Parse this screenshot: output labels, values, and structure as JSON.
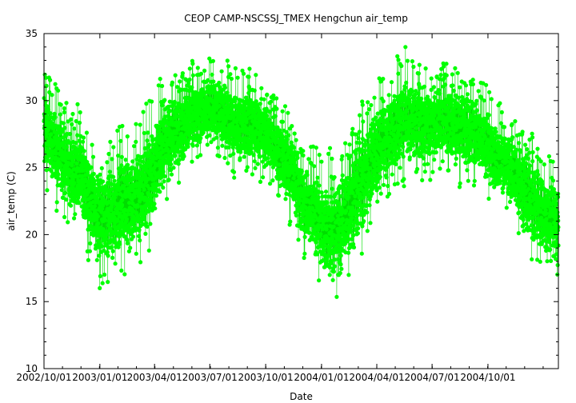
{
  "chart_data": {
    "type": "scatter",
    "title": "CEOP CAMP-NSCSSJ_TMEX Hengchun  air_temp",
    "xlabel": "Date",
    "ylabel": "air_temp (C)",
    "x_range": [
      "2002-10-01",
      "2005-01-25"
    ],
    "ylim": [
      10,
      35
    ],
    "y_ticks": [
      10,
      15,
      20,
      25,
      30,
      35
    ],
    "x_tick_labels": [
      "2002/10/01",
      "2003/01/01",
      "2003/04/01",
      "2003/07/01",
      "2003/10/01",
      "2004/01/01",
      "2004/04/01",
      "2004/07/01",
      "2004/10/01"
    ],
    "x_tick_dates": [
      "2002-10-01",
      "2003-01-01",
      "2003-04-01",
      "2003-07-01",
      "2003-10-01",
      "2004-01-01",
      "2004-04-01",
      "2004-07-01",
      "2004-10-01"
    ],
    "grid": false,
    "legend": "none",
    "marker_color": "#00ff00",
    "line_color": "#00dd00",
    "series": [
      {
        "x": [
          "2002-10-01",
          "2002-10-15",
          "2002-11-01",
          "2002-11-15",
          "2002-12-01",
          "2002-12-15",
          "2003-01-01",
          "2003-01-15",
          "2003-02-01",
          "2003-02-15",
          "2003-03-01",
          "2003-03-15",
          "2003-04-01",
          "2003-04-15",
          "2003-05-01",
          "2003-05-15",
          "2003-06-01",
          "2003-06-15",
          "2003-07-01",
          "2003-07-15",
          "2003-08-01",
          "2003-08-15",
          "2003-09-01",
          "2003-09-15",
          "2003-10-01",
          "2003-10-15",
          "2003-11-01",
          "2003-11-15",
          "2003-12-01",
          "2003-12-15",
          "2004-01-01",
          "2004-01-15",
          "2004-02-01",
          "2004-02-15",
          "2004-03-01",
          "2004-03-15",
          "2004-04-01",
          "2004-04-15",
          "2004-05-01",
          "2004-05-15",
          "2004-06-01",
          "2004-06-15",
          "2004-07-01",
          "2004-07-15",
          "2004-08-01",
          "2004-08-15",
          "2004-09-01",
          "2004-09-15",
          "2004-10-01",
          "2004-10-15",
          "2004-11-01",
          "2004-11-15",
          "2004-12-01",
          "2004-12-15",
          "2005-01-01",
          "2005-01-20"
        ],
        "y_mean": [
          28.0,
          27.0,
          26.0,
          25.5,
          24.0,
          23.0,
          21.5,
          21.0,
          21.0,
          21.5,
          22.5,
          23.5,
          25.5,
          26.0,
          27.0,
          28.0,
          29.0,
          29.0,
          29.5,
          29.5,
          29.0,
          28.5,
          28.5,
          28.0,
          28.0,
          27.0,
          26.0,
          25.0,
          23.0,
          22.0,
          21.0,
          20.5,
          20.5,
          21.5,
          23.0,
          24.0,
          26.0,
          27.0,
          28.0,
          28.5,
          28.5,
          28.5,
          29.0,
          28.5,
          28.5,
          28.0,
          28.0,
          27.5,
          27.0,
          26.5,
          25.5,
          25.0,
          24.0,
          23.5,
          22.5,
          22.0
        ],
        "y_min": [
          23.5,
          22.0,
          21.0,
          20.0,
          19.0,
          17.5,
          15.0,
          16.0,
          15.5,
          16.5,
          17.0,
          17.5,
          19.5,
          21.0,
          22.0,
          23.5,
          25.0,
          25.0,
          25.5,
          25.0,
          24.5,
          24.0,
          24.0,
          24.0,
          23.5,
          22.5,
          21.0,
          20.5,
          18.0,
          17.0,
          16.0,
          13.5,
          14.0,
          16.0,
          17.0,
          19.0,
          20.5,
          21.5,
          22.5,
          23.5,
          24.0,
          23.5,
          24.0,
          24.0,
          23.5,
          23.5,
          23.5,
          23.0,
          22.5,
          21.5,
          21.0,
          20.0,
          18.0,
          17.5,
          16.5,
          16.0
        ],
        "y_max": [
          32.5,
          31.5,
          30.5,
          29.5,
          30.0,
          28.0,
          27.0,
          27.5,
          28.0,
          28.5,
          29.0,
          29.5,
          31.0,
          32.0,
          32.5,
          32.5,
          33.0,
          33.0,
          33.5,
          33.5,
          33.0,
          32.5,
          32.5,
          32.0,
          31.5,
          30.5,
          30.0,
          29.0,
          27.0,
          27.0,
          26.0,
          26.5,
          27.0,
          28.0,
          29.5,
          30.5,
          32.0,
          32.5,
          33.0,
          34.5,
          33.0,
          32.5,
          32.5,
          33.0,
          33.0,
          32.5,
          32.5,
          32.0,
          31.0,
          30.0,
          29.5,
          29.0,
          28.0,
          27.5,
          26.5,
          26.0
        ]
      }
    ]
  }
}
